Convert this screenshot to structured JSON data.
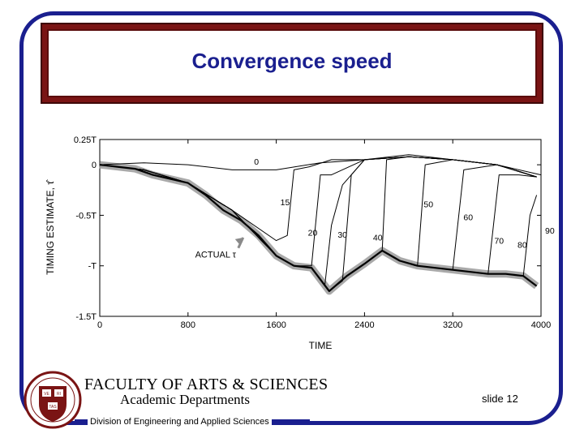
{
  "slide": {
    "title": "Convergence speed",
    "faculty_line1": "FACULTY OF ARTS & SCIENCES",
    "faculty_line2": "Academic Departments",
    "slide_number": "slide 12",
    "division": "Division of Engineering and Applied Sciences",
    "accent_color": "#1a1f8f",
    "band_color": "#7a1414",
    "logo_icon": "harvard-shield-icon",
    "logo_letters": [
      "VE",
      "RI",
      "TAS"
    ]
  },
  "chart_data": {
    "type": "line",
    "xlabel": "TIME",
    "ylabel": "TIMING ESTIMATE, τ̂",
    "xticks": [
      "0",
      "800",
      "1600",
      "2400",
      "3200",
      "4000"
    ],
    "xtick_values": [
      0,
      800,
      1600,
      2400,
      3200,
      4000
    ],
    "yticks": [
      "0.25T",
      "0",
      "-0.5T",
      "-T",
      "-1.5T"
    ],
    "ytick_values": [
      0.25,
      0,
      -0.5,
      -1,
      -1.5
    ],
    "xlim": [
      0,
      4000
    ],
    "ylim": [
      -1.5,
      0.25
    ],
    "grid": false,
    "annotation": "ACTUAL τ",
    "series": [
      {
        "name": "ACTUAL τ",
        "x": [
          0,
          160,
          320,
          480,
          640,
          800,
          960,
          1120,
          1280,
          1440,
          1600,
          1760,
          1920,
          2080,
          2240,
          2400,
          2560,
          2720,
          2880,
          3040,
          3200,
          3360,
          3520,
          3680,
          3840,
          3960
        ],
        "y": [
          0,
          -0.02,
          -0.04,
          -0.1,
          -0.14,
          -0.18,
          -0.3,
          -0.45,
          -0.55,
          -0.7,
          -0.9,
          -1.0,
          -1.02,
          -1.25,
          -1.1,
          -0.98,
          -0.85,
          -0.95,
          -1.0,
          -1.02,
          -1.04,
          -1.06,
          -1.08,
          -1.08,
          -1.1,
          -1.2
        ]
      },
      {
        "name": "0",
        "x": [
          0,
          400,
          800,
          1200,
          1600,
          2000,
          2400,
          2800,
          3200,
          3600,
          4000
        ],
        "y": [
          0,
          0.02,
          0.0,
          -0.05,
          -0.05,
          0.02,
          0.05,
          0.1,
          0.05,
          0.0,
          -0.1
        ]
      },
      {
        "name": "15",
        "x": [
          0,
          400,
          800,
          1200,
          1600,
          1700,
          1760,
          1900,
          2100,
          2400,
          2800,
          3200,
          3600,
          3960
        ],
        "y": [
          0,
          -0.05,
          -0.18,
          -0.45,
          -0.75,
          -0.7,
          -0.05,
          -0.02,
          0.05,
          0.05,
          0.08,
          0.05,
          0,
          -0.12
        ]
      },
      {
        "name": "20",
        "x": [
          0,
          400,
          800,
          1200,
          1600,
          1760,
          1920,
          2000,
          2100,
          2400,
          2800,
          3200,
          3600,
          3960
        ],
        "y": [
          0,
          -0.05,
          -0.18,
          -0.45,
          -0.9,
          -1.0,
          -1.0,
          -0.1,
          -0.1,
          0.05,
          0.08,
          0.05,
          0,
          -0.12
        ]
      },
      {
        "name": "30",
        "x": [
          0,
          400,
          800,
          1200,
          1600,
          1760,
          1920,
          2040,
          2100,
          2200,
          2400,
          2800,
          3200,
          3600,
          3960
        ],
        "y": [
          0,
          -0.05,
          -0.18,
          -0.45,
          -0.9,
          -1.0,
          -1.02,
          -1.2,
          -0.6,
          -0.2,
          0.05,
          0.08,
          0.05,
          0,
          -0.12
        ]
      },
      {
        "name": "40",
        "x": [
          0,
          400,
          800,
          1200,
          1600,
          1760,
          1920,
          2080,
          2200,
          2280,
          2400,
          2800,
          3200,
          3600,
          3960
        ],
        "y": [
          0,
          -0.05,
          -0.18,
          -0.45,
          -0.9,
          -1.0,
          -1.02,
          -1.25,
          -1.15,
          -0.1,
          0.05,
          0.08,
          0.05,
          0,
          -0.12
        ]
      },
      {
        "name": "50",
        "x": [
          0,
          400,
          800,
          1200,
          1600,
          1760,
          1920,
          2080,
          2240,
          2400,
          2560,
          2600,
          2800,
          3200,
          3600,
          3960
        ],
        "y": [
          0,
          -0.05,
          -0.18,
          -0.45,
          -0.9,
          -1.0,
          -1.02,
          -1.25,
          -1.1,
          -0.98,
          -0.85,
          0.05,
          0.08,
          0.05,
          0,
          -0.12
        ]
      },
      {
        "name": "60",
        "x": [
          0,
          400,
          800,
          1200,
          1600,
          1760,
          1920,
          2080,
          2240,
          2400,
          2560,
          2720,
          2880,
          2950,
          3200,
          3600,
          3960
        ],
        "y": [
          0,
          -0.05,
          -0.18,
          -0.45,
          -0.9,
          -1.0,
          -1.02,
          -1.25,
          -1.1,
          -0.98,
          -0.85,
          -0.95,
          -1.0,
          0.0,
          0.05,
          0,
          -0.12
        ]
      },
      {
        "name": "70",
        "x": [
          0,
          400,
          800,
          1200,
          1600,
          1760,
          1920,
          2080,
          2240,
          2400,
          2560,
          2720,
          2880,
          3040,
          3200,
          3300,
          3600,
          3960
        ],
        "y": [
          0,
          -0.05,
          -0.18,
          -0.45,
          -0.9,
          -1.0,
          -1.02,
          -1.25,
          -1.1,
          -0.98,
          -0.85,
          -0.95,
          -1.0,
          -1.02,
          -1.04,
          -0.05,
          0,
          -0.12
        ]
      },
      {
        "name": "80",
        "x": [
          0,
          400,
          800,
          1200,
          1600,
          1760,
          1920,
          2080,
          2240,
          2400,
          2560,
          2720,
          2880,
          3040,
          3200,
          3360,
          3520,
          3620,
          3800,
          3960
        ],
        "y": [
          0,
          -0.05,
          -0.18,
          -0.45,
          -0.9,
          -1.0,
          -1.02,
          -1.25,
          -1.1,
          -0.98,
          -0.85,
          -0.95,
          -1.0,
          -1.02,
          -1.04,
          -1.06,
          -1.08,
          -0.1,
          -0.1,
          -0.12
        ]
      },
      {
        "name": "90",
        "x": [
          0,
          400,
          800,
          1200,
          1600,
          1760,
          1920,
          2080,
          2240,
          2400,
          2560,
          2720,
          2880,
          3040,
          3200,
          3360,
          3520,
          3680,
          3840,
          3900,
          3960
        ],
        "y": [
          0,
          -0.05,
          -0.18,
          -0.45,
          -0.9,
          -1.0,
          -1.02,
          -1.25,
          -1.1,
          -0.98,
          -0.85,
          -0.95,
          -1.0,
          -1.02,
          -1.04,
          -1.06,
          -1.08,
          -1.08,
          -1.1,
          -0.5,
          -0.3
        ]
      }
    ],
    "curve_labels": [
      {
        "text": "0",
        "x": 1420,
        "y": 0.0
      },
      {
        "text": "15",
        "x": 1680,
        "y": -0.4
      },
      {
        "text": "20",
        "x": 1930,
        "y": -0.7
      },
      {
        "text": "30",
        "x": 2200,
        "y": -0.72
      },
      {
        "text": "40",
        "x": 2520,
        "y": -0.75
      },
      {
        "text": "50",
        "x": 2980,
        "y": -0.42
      },
      {
        "text": "60",
        "x": 3340,
        "y": -0.55
      },
      {
        "text": "70",
        "x": 3620,
        "y": -0.78
      },
      {
        "text": "80",
        "x": 3830,
        "y": -0.82
      },
      {
        "text": "90",
        "x": 4080,
        "y": -0.68
      }
    ]
  }
}
